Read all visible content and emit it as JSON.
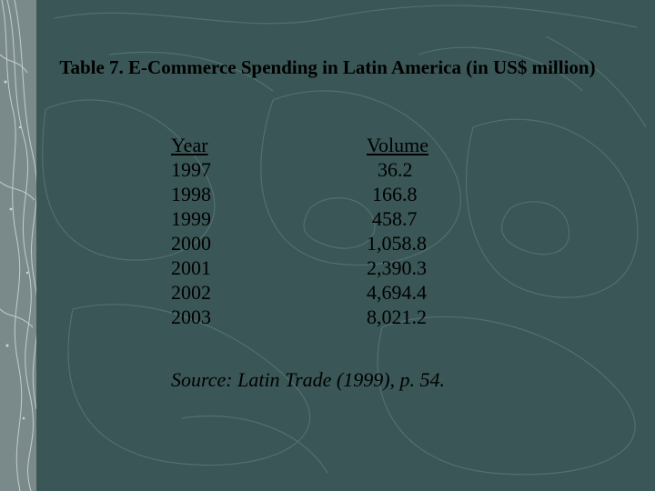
{
  "slide": {
    "title": "Table 7.  E-Commerce Spending in Latin America (in US$ million)",
    "table": {
      "headers": [
        "Year",
        "Volume"
      ],
      "rows": [
        [
          "1997",
          "36.2"
        ],
        [
          "1998",
          "166.8"
        ],
        [
          "1999",
          "458.7"
        ],
        [
          "2000",
          "1,058.8"
        ],
        [
          "2001",
          "2,390.3"
        ],
        [
          "2002",
          "4,694.4"
        ],
        [
          "2003",
          "8,021.2"
        ]
      ]
    },
    "source": "Source: Latin Trade (1999), p. 54."
  },
  "colors": {
    "background": "#3a5656",
    "contour": "#5a7878",
    "text": "#000000"
  }
}
